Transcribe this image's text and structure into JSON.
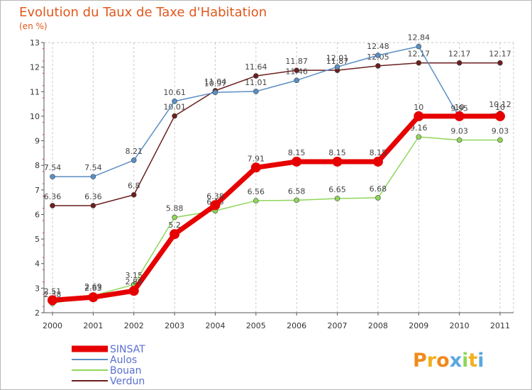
{
  "title": "Evolution du Taux de Taxe d'Habitation",
  "subtitle": "(en %)",
  "logo_text": "Proxiti",
  "chart_data": {
    "type": "line",
    "x": [
      "2000",
      "2001",
      "2002",
      "2003",
      "2004",
      "2005",
      "2006",
      "2007",
      "2008",
      "2009",
      "2010",
      "2011"
    ],
    "ylim": [
      2,
      13
    ],
    "y_ticks": [
      "2",
      "3",
      "4",
      "5",
      "6",
      "7",
      "8",
      "9",
      "10",
      "11",
      "12",
      "13"
    ],
    "grid": "vertical-dashed",
    "legend_placement": "bottom-left",
    "series": [
      {
        "name": "Verdun",
        "color": "#6b1f1f",
        "labels": [
          "6.36",
          "6.36",
          "6.8",
          "10.01",
          "11.04",
          "11.64",
          "11.87",
          "11.87",
          "12.05",
          "12.17",
          "12.17",
          "12.17"
        ],
        "values": [
          6.36,
          6.36,
          6.8,
          10.01,
          11.04,
          11.64,
          11.87,
          11.87,
          12.05,
          12.17,
          12.17,
          12.17
        ]
      },
      {
        "name": "Aulos",
        "color": "#5b8fc4",
        "labels": [
          "7.54",
          "7.54",
          "8.21",
          "10.61",
          "10.97",
          "11.01",
          "11.46",
          "12.01",
          "12.48",
          "12.84",
          "9.95",
          "10.12"
        ],
        "values": [
          7.54,
          7.54,
          8.21,
          10.61,
          10.97,
          11.01,
          11.46,
          12.01,
          12.48,
          12.84,
          9.95,
          10.12
        ]
      },
      {
        "name": "Bouan",
        "color": "#8fd65a",
        "labels": [
          "2.38",
          "2.69",
          "3.15",
          "5.88",
          "6.15",
          "6.56",
          "6.58",
          "6.65",
          "6.68",
          "9.16",
          "9.03",
          "9.03"
        ],
        "values": [
          2.38,
          2.69,
          3.15,
          5.88,
          6.15,
          6.56,
          6.58,
          6.65,
          6.68,
          9.16,
          9.03,
          9.03
        ]
      },
      {
        "name": "SINSAT",
        "color": "#e60000",
        "labels": [
          "2.51",
          "2.63",
          "2.89",
          "5.2",
          "6.38",
          "7.91",
          "8.15",
          "8.15",
          "8.15",
          "10",
          "10",
          "10"
        ],
        "values": [
          2.51,
          2.63,
          2.89,
          5.2,
          6.38,
          7.91,
          8.15,
          8.15,
          8.15,
          10,
          10,
          10
        ]
      }
    ],
    "legend": [
      "SINSAT",
      "Aulos",
      "Bouan",
      "Verdun"
    ]
  }
}
